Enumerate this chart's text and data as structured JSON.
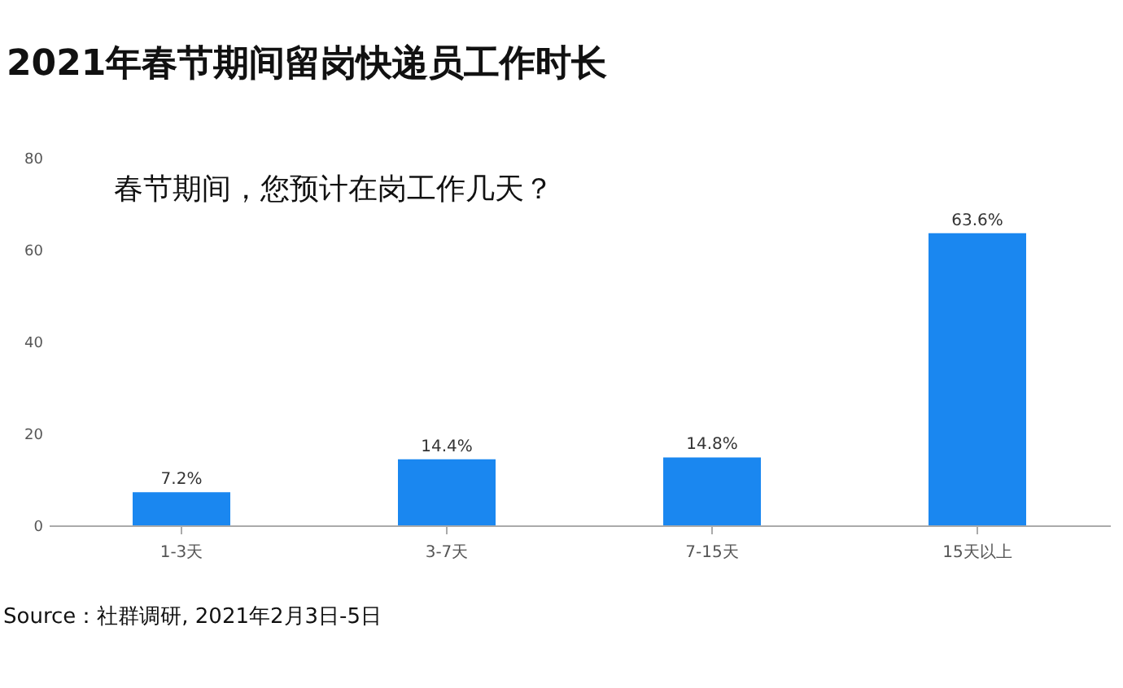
{
  "chart_data": {
    "type": "bar",
    "title": "2021年春节期间留岗快递员工作时长",
    "subtitle": "春节期间，您预计在岗工作几天？",
    "categories": [
      "1-3天",
      "3-7天",
      "7-15天",
      "15天以上"
    ],
    "values": [
      7.2,
      14.4,
      14.8,
      63.6
    ],
    "value_labels": [
      "7.2%",
      "14.4%",
      "14.8%",
      "63.6%"
    ],
    "color": "#1a87f0",
    "ylim": [
      0,
      80
    ],
    "yticks": [
      0,
      20,
      40,
      60,
      80
    ],
    "annotations": [
      "Source：社群调研, 2021年2月3日-5日"
    ]
  }
}
